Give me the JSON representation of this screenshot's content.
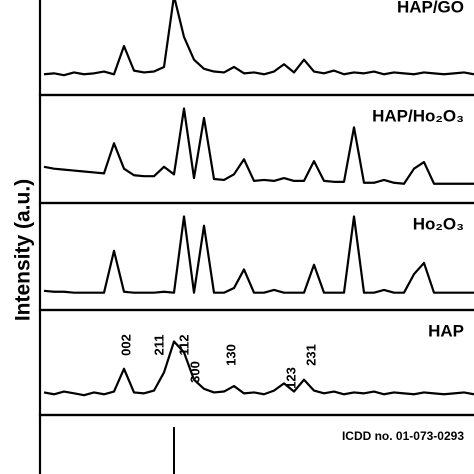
{
  "ylabel": "Intensity (a.u.)",
  "chart_data": [
    {
      "type": "line",
      "title": "HAP/GO",
      "color": "#000000",
      "values": [
        14,
        15,
        13,
        16,
        14,
        15,
        17,
        14,
        45,
        18,
        16,
        17,
        22,
        100,
        55,
        30,
        20,
        17,
        16,
        22,
        15,
        16,
        14,
        17,
        25,
        16,
        30,
        17,
        15,
        18,
        14,
        16,
        15,
        17,
        14,
        16,
        15,
        14,
        16,
        15,
        14,
        15,
        16,
        14
      ]
    },
    {
      "type": "line",
      "title": "HAP/Ho₂O₃",
      "color": "#000000",
      "values": [
        30,
        28,
        27,
        26,
        25,
        24,
        23,
        55,
        28,
        21,
        20,
        20,
        30,
        22,
        92,
        18,
        82,
        17,
        16,
        22,
        38,
        15,
        16,
        15,
        18,
        15,
        15,
        36,
        15,
        14,
        14,
        72,
        13,
        13,
        16,
        13,
        12,
        28,
        35,
        12,
        12,
        12,
        12,
        12
      ]
    },
    {
      "type": "line",
      "title": "Ho₂O₃",
      "color": "#000000",
      "values": [
        12,
        11,
        11,
        10,
        10,
        10,
        10,
        55,
        11,
        10,
        10,
        10,
        11,
        10,
        92,
        10,
        82,
        10,
        10,
        15,
        35,
        10,
        10,
        13,
        10,
        10,
        10,
        40,
        10,
        10,
        10,
        92,
        10,
        10,
        13,
        10,
        10,
        30,
        42,
        10,
        10,
        10,
        10,
        10
      ]
    },
    {
      "type": "line",
      "title": "HAP",
      "color": "#000000",
      "values": [
        16,
        14,
        17,
        15,
        13,
        16,
        14,
        17,
        42,
        16,
        15,
        18,
        38,
        72,
        60,
        30,
        20,
        16,
        17,
        23,
        15,
        16,
        14,
        18,
        26,
        17,
        30,
        18,
        15,
        17,
        14,
        16,
        15,
        17,
        14,
        16,
        15,
        14,
        16,
        15,
        14,
        15,
        16,
        14
      ],
      "annotations": [
        "002",
        "211",
        "112",
        "300",
        "130",
        "123",
        "231"
      ]
    },
    {
      "type": "bar",
      "title": "ICDD no. 01-073-0293",
      "color": "#000000",
      "values": [
        0,
        0,
        0,
        0,
        0,
        0,
        0,
        0,
        0,
        0,
        0,
        0,
        0,
        90,
        0,
        0,
        0,
        0,
        0,
        0,
        0,
        0,
        0,
        0,
        0,
        0,
        0,
        0,
        0,
        0,
        0,
        0,
        0,
        0,
        0,
        0,
        0,
        0,
        0,
        0,
        0,
        0,
        0,
        0
      ]
    }
  ]
}
